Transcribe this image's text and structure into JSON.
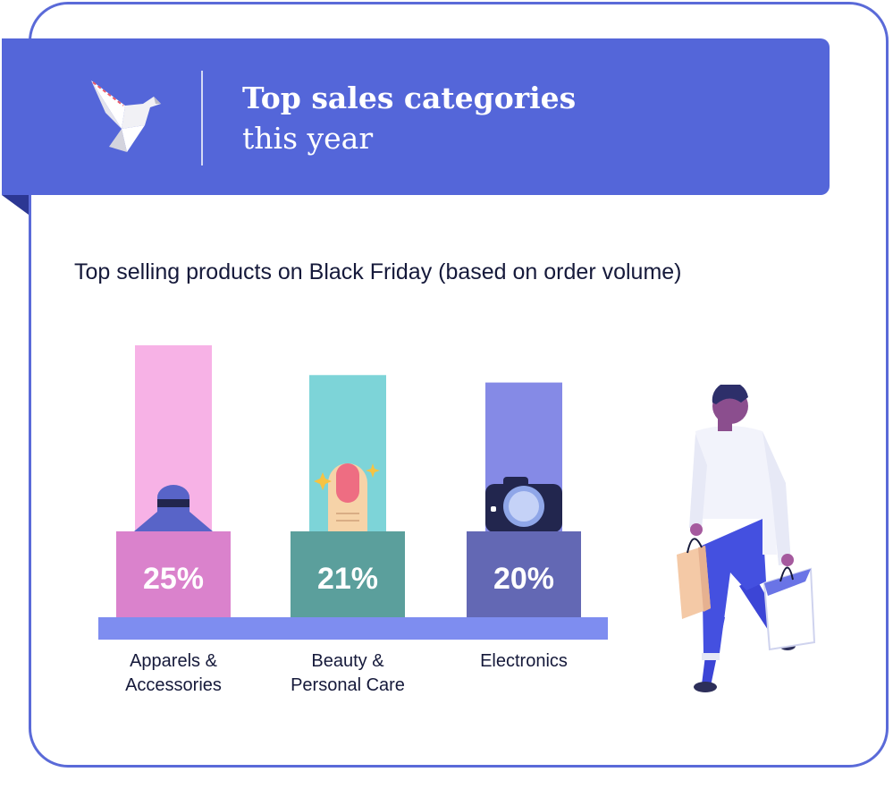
{
  "header": {
    "title_bold": "Top sales categories",
    "title_light": "this year"
  },
  "subtitle": "Top selling products on Black Friday (based on order volume)",
  "colors": {
    "banner": "#5466d9",
    "border": "#5a6ad8",
    "base": "#7e8df0",
    "apparels": "#da82cc",
    "apparels_light": "#f7b2e6",
    "beauty": "#5b9f9c",
    "beauty_light": "#7dd4d8",
    "electronics": "#6368b4",
    "electronics_light": "#858ae6"
  },
  "chart_data": {
    "type": "bar",
    "title": "Top selling products on Black Friday (based on order volume)",
    "categories": [
      "Apparels & Accessories",
      "Beauty & Personal Care",
      "Electronics"
    ],
    "values": [
      25,
      21,
      20
    ],
    "value_labels": [
      "25%",
      "21%",
      "20%"
    ],
    "label_lines": [
      [
        "Apparels &",
        "Accessories"
      ],
      [
        "Beauty &",
        "Personal Care"
      ],
      [
        "Electronics"
      ]
    ],
    "icons": [
      "hat-icon",
      "nail-icon",
      "camera-icon"
    ],
    "ylim": [
      0,
      25
    ],
    "grid": false,
    "legend": "none"
  }
}
